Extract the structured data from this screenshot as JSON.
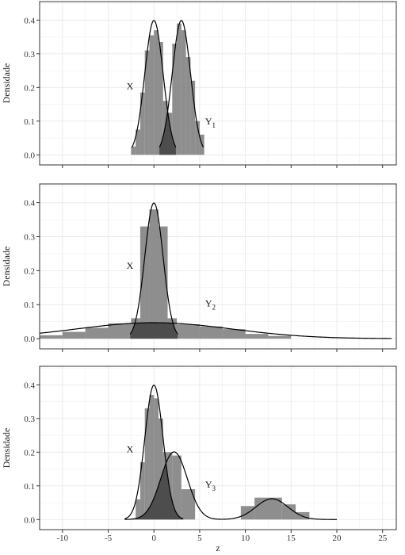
{
  "chart_data": {
    "type": "area",
    "ylabel": "Densidade",
    "xlabel": "z",
    "xlim": [
      -12.5,
      26.5
    ],
    "xticks": [
      -10,
      -5,
      0,
      5,
      10,
      15,
      20,
      25
    ],
    "ylim": [
      -0.03,
      0.455
    ],
    "yticks": [
      0.0,
      0.1,
      0.2,
      0.3,
      0.4
    ],
    "ytick_labels": [
      "0.0",
      "0.1",
      "0.2",
      "0.3",
      "0.4"
    ],
    "grid": true,
    "colors": {
      "hist": "#7a7a7a",
      "overlap": "#4d4d4d",
      "curve": "#000000",
      "panel_bg": "#ffffff",
      "grid": "#ebebeb",
      "frame": "#333333"
    },
    "panels": [
      {
        "x_label": {
          "main": "X",
          "sub": "",
          "x": -3.0,
          "y": 0.195
        },
        "y_label": {
          "main": "Y",
          "sub": "1",
          "x": 5.6,
          "y": 0.09
        },
        "series": [
          {
            "kind": "normal",
            "mean": 0,
            "sd": 1,
            "range": [
              -2.4,
              2.4
            ]
          },
          {
            "kind": "normal",
            "mean": 3,
            "sd": 1,
            "range": [
              0.6,
              5.4
            ]
          }
        ],
        "hist": [
          {
            "x0": -2.5,
            "x1": -2.0,
            "y": 0.025
          },
          {
            "x0": -2.0,
            "x1": -1.5,
            "y": 0.075
          },
          {
            "x0": -1.5,
            "x1": -1.0,
            "y": 0.185
          },
          {
            "x0": -1.0,
            "x1": -0.5,
            "y": 0.31
          },
          {
            "x0": -0.5,
            "x1": 0.0,
            "y": 0.355
          },
          {
            "x0": 0.0,
            "x1": 0.5,
            "y": 0.37
          },
          {
            "x0": 0.5,
            "x1": 1.0,
            "y": 0.335
          },
          {
            "x0": 1.0,
            "x1": 1.5,
            "y": 0.16
          },
          {
            "x0": 1.5,
            "x1": 2.0,
            "y": 0.125
          },
          {
            "x0": 2.0,
            "x1": 2.5,
            "y": 0.33
          },
          {
            "x0": 2.5,
            "x1": 3.0,
            "y": 0.39
          },
          {
            "x0": 3.0,
            "x1": 3.5,
            "y": 0.37
          },
          {
            "x0": 3.5,
            "x1": 4.0,
            "y": 0.29
          },
          {
            "x0": 4.0,
            "x1": 4.5,
            "y": 0.22
          },
          {
            "x0": 4.5,
            "x1": 5.0,
            "y": 0.1
          },
          {
            "x0": 5.0,
            "x1": 5.5,
            "y": 0.06
          }
        ]
      },
      {
        "x_label": {
          "main": "X",
          "sub": "",
          "x": -3.0,
          "y": 0.205
        },
        "y_label": {
          "main": "Y",
          "sub": "2",
          "x": 5.6,
          "y": 0.095
        },
        "series": [
          {
            "kind": "normal",
            "mean": 0,
            "sd": 1,
            "range": [
              -2.6,
              2.6
            ]
          },
          {
            "kind": "normal",
            "mean": 0,
            "sd": 8.5,
            "range": [
              -12.5,
              26.0
            ]
          }
        ],
        "hist": [
          {
            "x0": -12.5,
            "x1": -10.0,
            "y": 0.01
          },
          {
            "x0": -10.0,
            "x1": -7.5,
            "y": 0.02
          },
          {
            "x0": -7.5,
            "x1": -5.0,
            "y": 0.032
          },
          {
            "x0": -5.0,
            "x1": -2.5,
            "y": 0.045
          },
          {
            "x0": -2.5,
            "x1": -1.5,
            "y": 0.06
          },
          {
            "x0": -1.5,
            "x1": -0.5,
            "y": 0.33
          },
          {
            "x0": -0.5,
            "x1": 0.5,
            "y": 0.38
          },
          {
            "x0": 0.5,
            "x1": 1.5,
            "y": 0.33
          },
          {
            "x0": 1.5,
            "x1": 2.5,
            "y": 0.06
          },
          {
            "x0": 2.5,
            "x1": 5.0,
            "y": 0.042
          },
          {
            "x0": 5.0,
            "x1": 7.5,
            "y": 0.036
          },
          {
            "x0": 7.5,
            "x1": 10.0,
            "y": 0.028
          },
          {
            "x0": 10.0,
            "x1": 12.5,
            "y": 0.014
          },
          {
            "x0": 12.5,
            "x1": 15.0,
            "y": 0.008
          }
        ]
      },
      {
        "x_label": {
          "main": "X",
          "sub": "",
          "x": -3.0,
          "y": 0.2
        },
        "y_label": {
          "main": "Y",
          "sub": "3",
          "x": 5.6,
          "y": 0.095
        },
        "series": [
          {
            "kind": "normal",
            "mean": 0,
            "sd": 1,
            "range": [
              -3.2,
              3.2
            ]
          },
          {
            "kind": "mixture",
            "components": [
              {
                "w": 0.73,
                "mean": 2.2,
                "sd": 1.45
              },
              {
                "w": 0.27,
                "mean": 12.9,
                "sd": 1.75
              }
            ],
            "range": [
              -3.2,
              20.0
            ]
          }
        ],
        "hist": [
          {
            "x0": -2.0,
            "x1": -1.5,
            "y": 0.06
          },
          {
            "x0": -1.5,
            "x1": -1.0,
            "y": 0.17
          },
          {
            "x0": -1.0,
            "x1": -0.5,
            "y": 0.33
          },
          {
            "x0": -0.5,
            "x1": 0.0,
            "y": 0.37
          },
          {
            "x0": 0.0,
            "x1": 0.5,
            "y": 0.36
          },
          {
            "x0": 0.5,
            "x1": 1.0,
            "y": 0.3
          },
          {
            "x0": 1.0,
            "x1": 2.0,
            "y": 0.2
          },
          {
            "x0": 2.0,
            "x1": 3.0,
            "y": 0.19
          },
          {
            "x0": 3.0,
            "x1": 4.5,
            "y": 0.09
          },
          {
            "x0": 9.5,
            "x1": 11.0,
            "y": 0.04
          },
          {
            "x0": 11.0,
            "x1": 12.5,
            "y": 0.065
          },
          {
            "x0": 12.5,
            "x1": 14.0,
            "y": 0.065
          },
          {
            "x0": 14.0,
            "x1": 15.5,
            "y": 0.045
          },
          {
            "x0": 15.5,
            "x1": 17.0,
            "y": 0.022
          }
        ]
      }
    ]
  }
}
